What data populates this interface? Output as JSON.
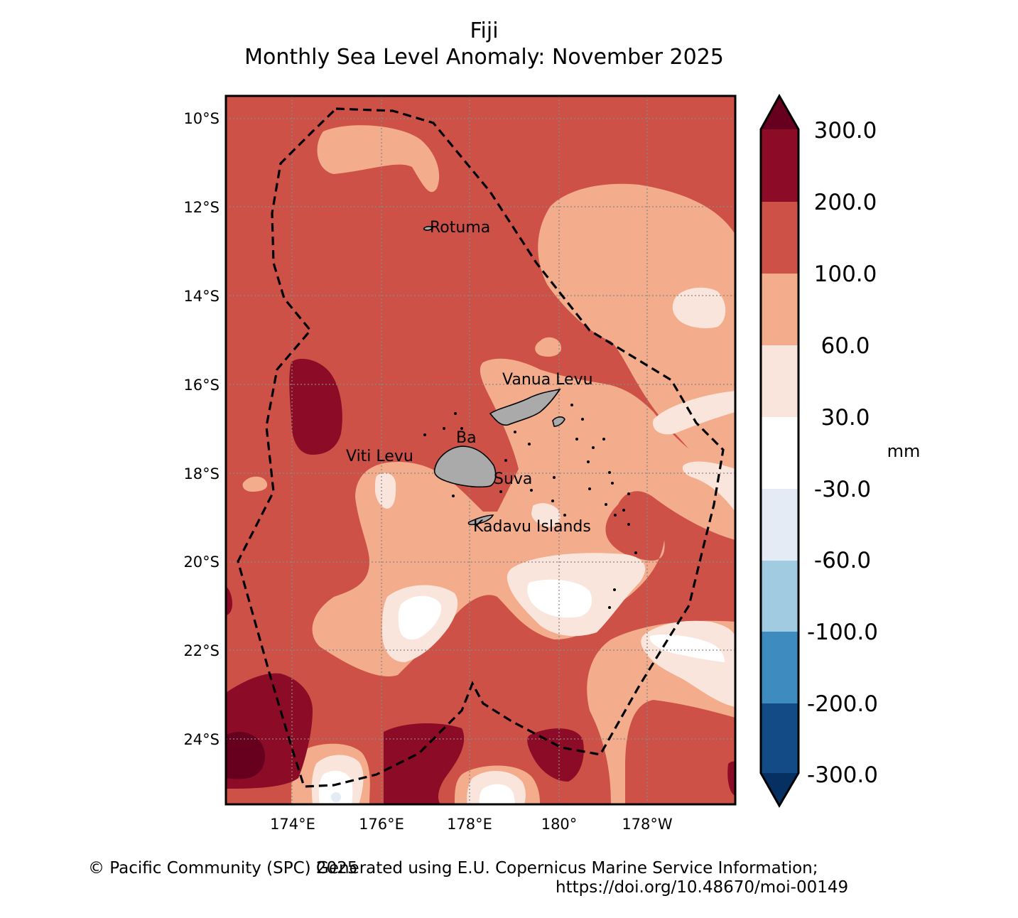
{
  "map": {
    "country": "Fiji",
    "title": "Monthly Sea Level Anomaly: November 2025",
    "lat_ticks": [
      "10°S",
      "12°S",
      "14°S",
      "16°S",
      "18°S",
      "20°S",
      "22°S",
      "24°S"
    ],
    "lon_ticks": [
      "174°E",
      "176°E",
      "178°E",
      "180°",
      "178°W"
    ],
    "places": [
      {
        "id": "rotuma",
        "label": "Rotuma"
      },
      {
        "id": "vanua-levu",
        "label": "Vanua Levu"
      },
      {
        "id": "ba",
        "label": "Ba"
      },
      {
        "id": "viti-levu",
        "label": "Viti Levu"
      },
      {
        "id": "suva",
        "label": "Suva"
      },
      {
        "id": "kadavu",
        "label": "Kadavu Islands"
      }
    ]
  },
  "colorbar": {
    "unit": "mm",
    "levels": [
      "300.0",
      "200.0",
      "100.0",
      "60.0",
      "30.0",
      "-30.0",
      "-60.0",
      "-100.0",
      "-200.0",
      "-300.0"
    ],
    "colors": {
      "above_300": "#67001f",
      "200_300": "#8c0b26",
      "100_200": "#cd5146",
      "60_100": "#f4ad8c",
      "30_60": "#fae5dc",
      "m30_30": "#ffffff",
      "m60_m30": "#e4ebf4",
      "m100_m60": "#a1cbe1",
      "m200_m100": "#3e8bc0",
      "m300_m200": "#134b87",
      "below_m300": "#053061"
    }
  },
  "credits": {
    "copyright": "© Pacific Community (SPC) 2025",
    "source": "Generated using E.U. Copernicus Marine Service Information;",
    "doi": "https://doi.org/10.48670/moi-00149"
  }
}
